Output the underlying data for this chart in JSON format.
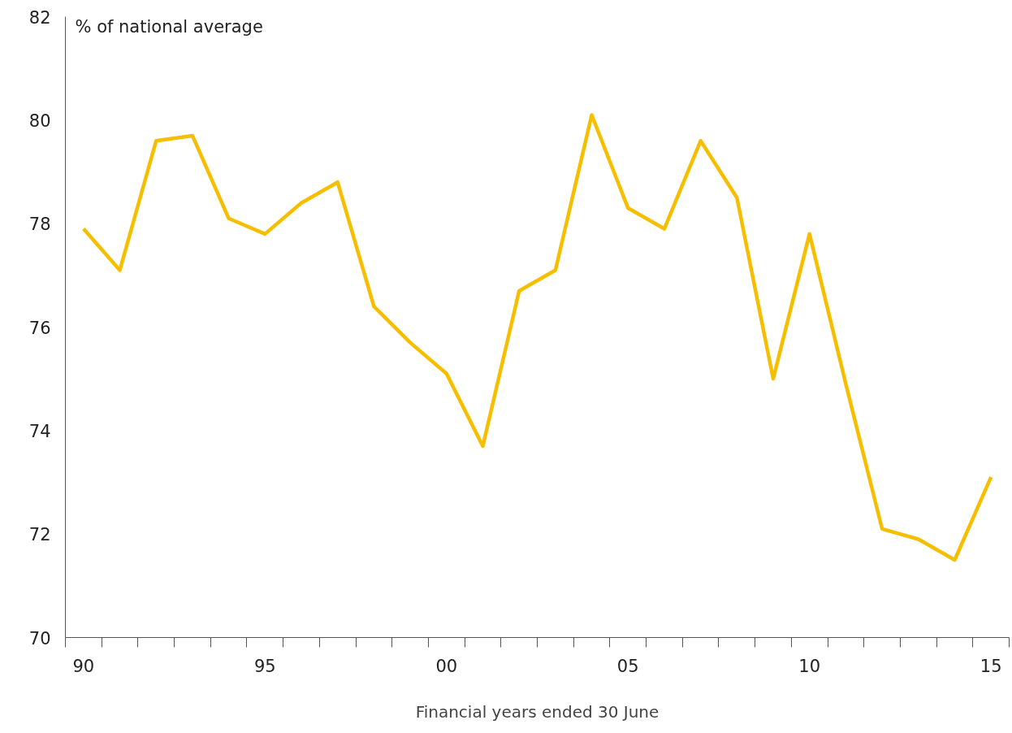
{
  "chart_data": {
    "type": "line",
    "ylabel": "% of national average",
    "xlabel": "Financial years ended 30 June",
    "categories": [
      "90",
      null,
      null,
      null,
      null,
      "95",
      null,
      null,
      null,
      null,
      "00",
      null,
      null,
      null,
      null,
      "05",
      null,
      null,
      null,
      null,
      "10",
      null,
      null,
      null,
      null,
      "15"
    ],
    "series": [
      {
        "color": "#f5bf00",
        "values": [
          77.9,
          77.1,
          79.6,
          79.7,
          78.1,
          77.8,
          78.4,
          78.8,
          76.4,
          75.7,
          75.1,
          73.7,
          76.7,
          77.1,
          80.1,
          78.3,
          77.9,
          79.6,
          78.5,
          75.0,
          77.8,
          74.9,
          72.1,
          71.9,
          71.5,
          73.1
        ]
      }
    ],
    "ylim": [
      70,
      82
    ],
    "yticks": [
      70,
      72,
      74,
      76,
      78,
      80,
      82
    ],
    "grid": false,
    "marker": "none",
    "line_style": "solid"
  }
}
